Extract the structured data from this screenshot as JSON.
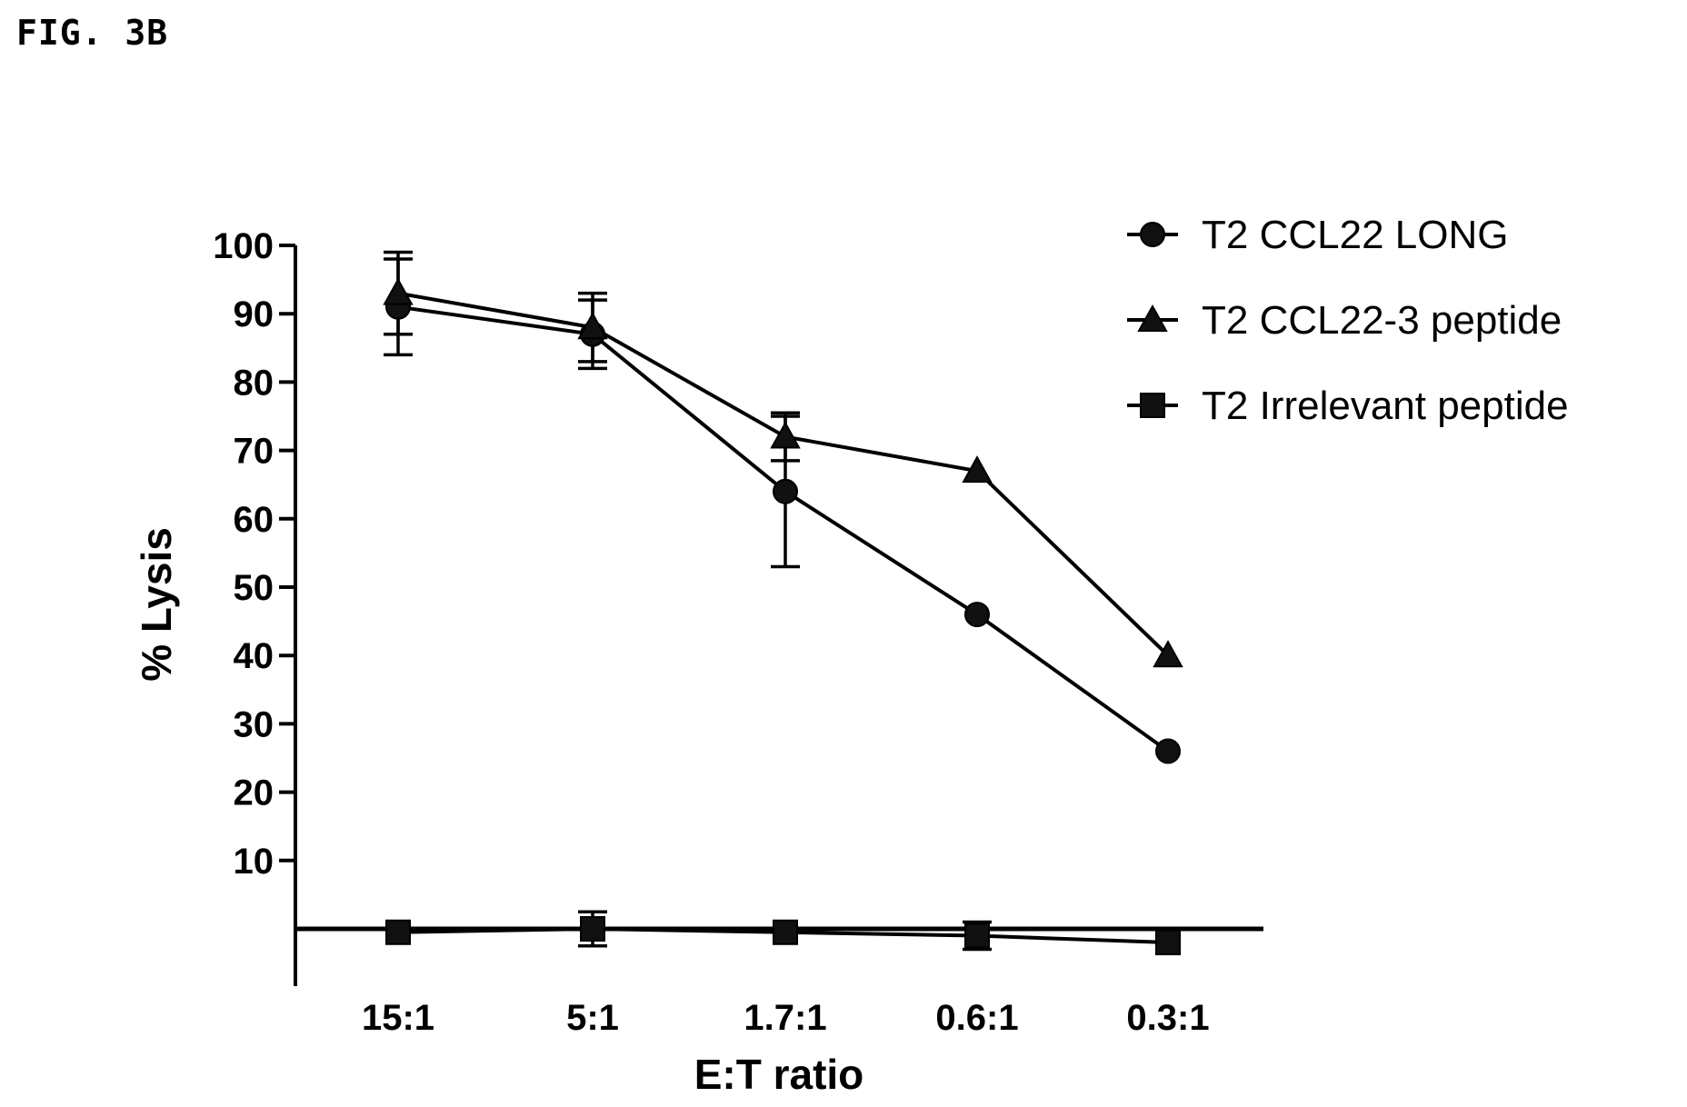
{
  "figure_label": "FIG. 3B",
  "chart_data": {
    "type": "line",
    "title": "",
    "xlabel": "E:T ratio",
    "ylabel": "% Lysis",
    "categories": [
      "15:1",
      "5:1",
      "1.7:1",
      "0.6:1",
      "0.3:1"
    ],
    "y_ticks": [
      10,
      20,
      30,
      40,
      50,
      60,
      70,
      80,
      90,
      100
    ],
    "ylim": [
      -8,
      100
    ],
    "legend_position": "top-right",
    "grid": false,
    "series": [
      {
        "name": "T2 CCL22 LONG",
        "marker": "circle",
        "values": [
          91,
          87,
          64,
          46,
          26
        ],
        "error": [
          7,
          5,
          11,
          0,
          0
        ]
      },
      {
        "name": "T2 CCL22-3 peptide",
        "marker": "triangle",
        "values": [
          93,
          88,
          72,
          67,
          40
        ],
        "error": [
          6,
          5,
          3.5,
          0,
          0
        ]
      },
      {
        "name": "T2 Irrelevant peptide",
        "marker": "square",
        "values": [
          -0.5,
          0,
          -0.5,
          -1,
          -2
        ],
        "error": [
          0,
          2.5,
          0,
          2,
          0
        ]
      }
    ]
  }
}
